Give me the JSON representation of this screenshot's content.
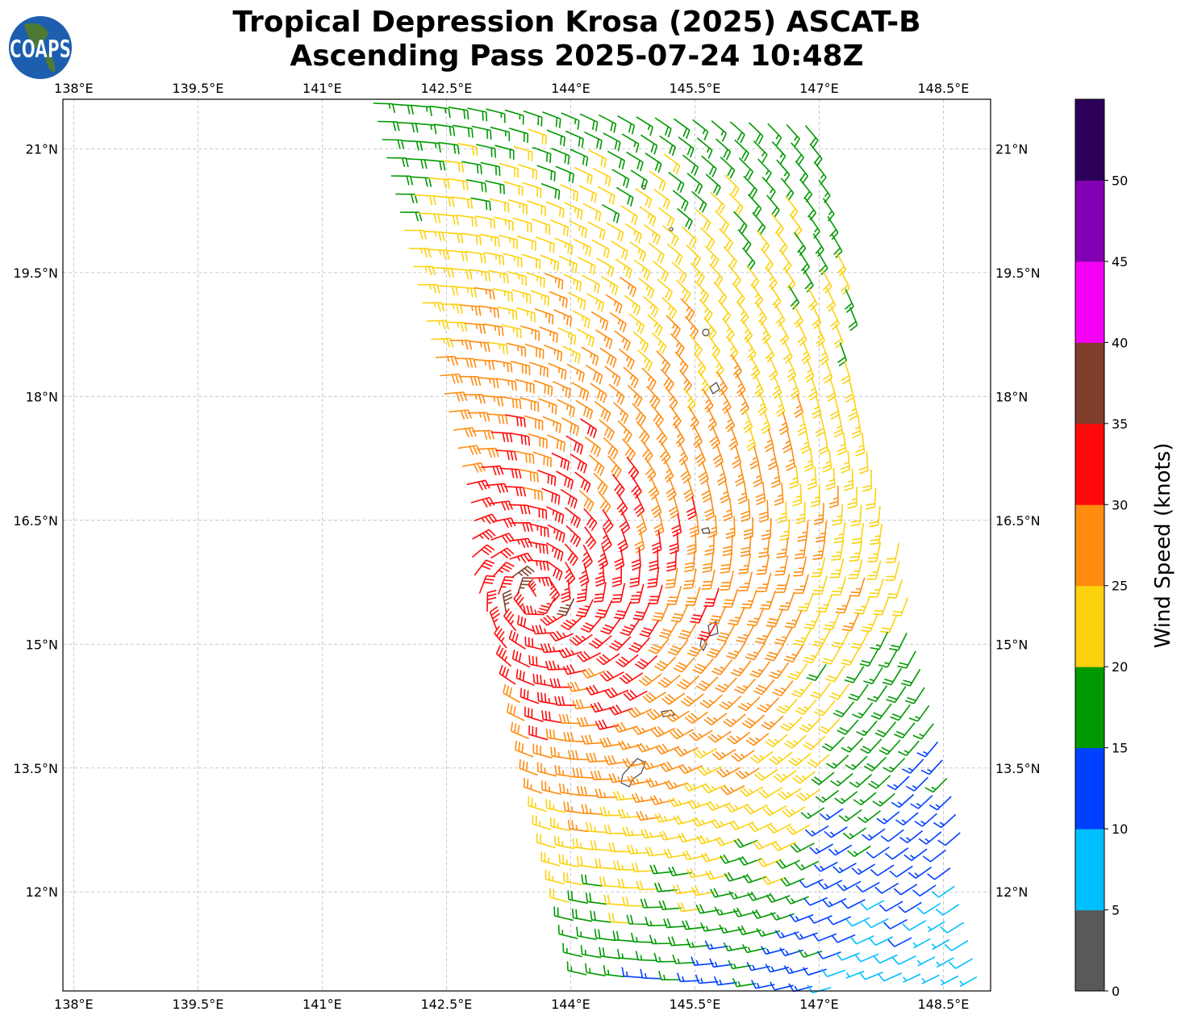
{
  "title": {
    "line1": "Tropical Depression Krosa (2025) ASCAT-B",
    "line2": "Ascending Pass 2025-07-24 10:48Z"
  },
  "logo": {
    "text": "COAPS"
  },
  "map": {
    "lon_range": [
      137.87,
      149.07
    ],
    "lat_range": [
      10.8,
      21.6
    ],
    "lon_ticks": [
      "138°E",
      "139.5°E",
      "141°E",
      "142.5°E",
      "144°E",
      "145.5°E",
      "147°E",
      "148.5°E"
    ],
    "lon_tick_values": [
      138,
      139.5,
      141,
      142.5,
      144,
      145.5,
      147,
      148.5
    ],
    "lat_ticks": [
      "21°N",
      "19.5°N",
      "18°N",
      "16.5°N",
      "15°N",
      "13.5°N",
      "12°N"
    ],
    "lat_tick_values": [
      21,
      19.5,
      18,
      16.5,
      15,
      13.5,
      12
    ],
    "storm_center": {
      "lon": 143.6,
      "lat": 15.6
    }
  },
  "colorbar": {
    "label": "Wind Speed (knots)",
    "ticks": [
      "0",
      "5",
      "10",
      "15",
      "20",
      "25",
      "30",
      "35",
      "40",
      "45",
      "50"
    ],
    "max": 55,
    "colors": [
      "#595959",
      "#00bfff",
      "#0040ff",
      "#009900",
      "#fcd20f",
      "#ff8c0f",
      "#ff0a0a",
      "#803d2a",
      "#f400f4",
      "#8400b4",
      "#2c0058"
    ]
  }
}
